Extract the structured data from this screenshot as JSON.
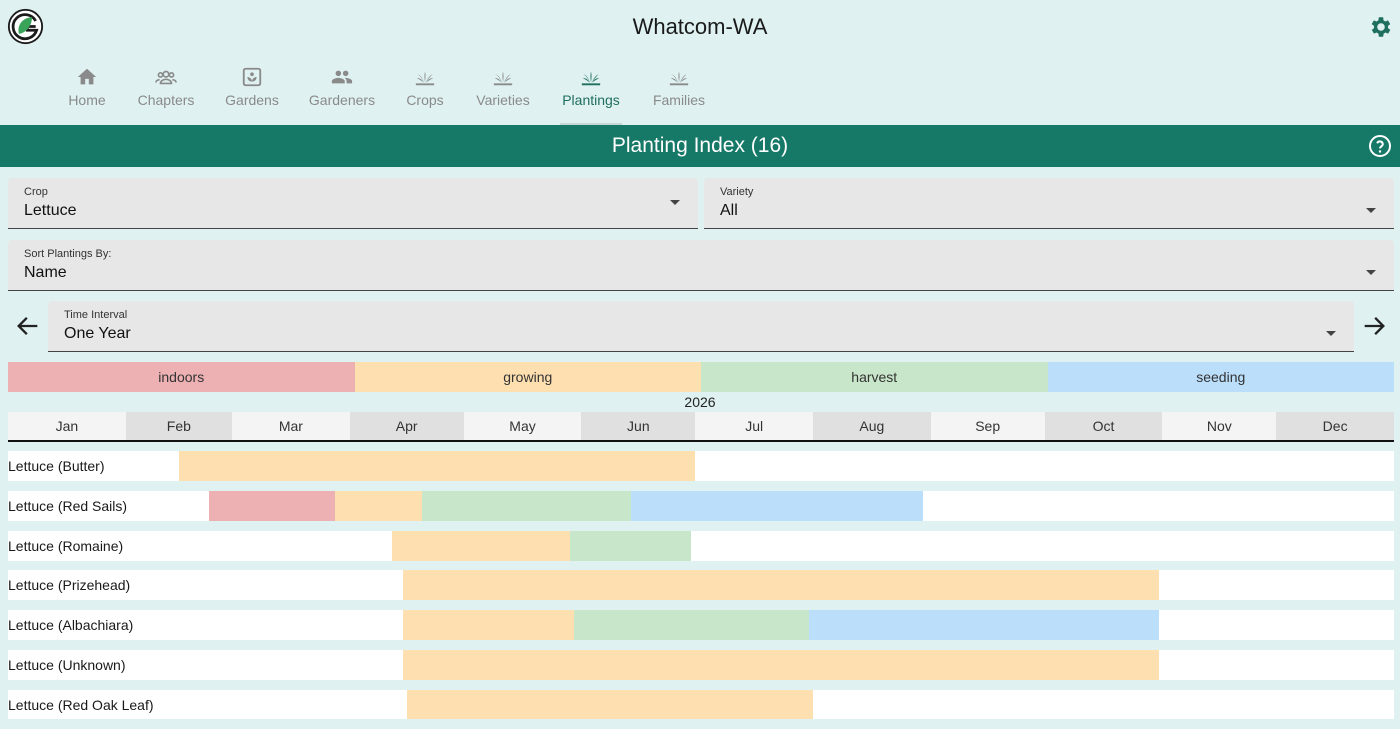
{
  "app": {
    "title": "Whatcom-WA",
    "logo_icon": "g-leaf-logo",
    "settings_icon": "gear-icon"
  },
  "nav": [
    {
      "label": "Home",
      "icon": "home-icon",
      "active": false
    },
    {
      "label": "Chapters",
      "icon": "groups-icon",
      "active": false
    },
    {
      "label": "Gardens",
      "icon": "garden-icon",
      "active": false
    },
    {
      "label": "Gardeners",
      "icon": "people-icon",
      "active": false
    },
    {
      "label": "Crops",
      "icon": "sprout-icon",
      "active": false
    },
    {
      "label": "Varieties",
      "icon": "sprout-icon",
      "active": false
    },
    {
      "label": "Plantings",
      "icon": "sprout-icon",
      "active": true
    },
    {
      "label": "Families",
      "icon": "sprout-icon",
      "active": false
    }
  ],
  "page": {
    "title": "Planting Index (16)",
    "help_icon": "help-circle-icon"
  },
  "filters": {
    "crop": {
      "label": "Crop",
      "value": "Lettuce"
    },
    "variety": {
      "label": "Variety",
      "value": "All"
    },
    "sort": {
      "label": "Sort Plantings By:",
      "value": "Name"
    },
    "interval": {
      "label": "Time Interval",
      "value": "One Year"
    }
  },
  "legend": [
    {
      "label": "indoors",
      "color": "#edb1b4"
    },
    {
      "label": "growing",
      "color": "#fee0b0"
    },
    {
      "label": "harvest",
      "color": "#c8e6c9"
    },
    {
      "label": "seeding",
      "color": "#bbdefb"
    }
  ],
  "timeline": {
    "year": "2026",
    "months": [
      "Jan",
      "Feb",
      "Mar",
      "Apr",
      "May",
      "Jun",
      "Jul",
      "Aug",
      "Sep",
      "Oct",
      "Nov",
      "Dec"
    ]
  },
  "plantings": [
    {
      "name": "Lettuce (Butter)",
      "segments": [
        {
          "stage": "growing",
          "start": "2026-02-15",
          "end": "2026-07-01"
        }
      ]
    },
    {
      "name": "Lettuce (Red Sails)",
      "segments": [
        {
          "stage": "indoors",
          "start": "2026-02-23",
          "end": "2026-03-28"
        },
        {
          "stage": "growing",
          "start": "2026-03-28",
          "end": "2026-04-20"
        },
        {
          "stage": "harvest",
          "start": "2026-04-20",
          "end": "2026-06-14"
        },
        {
          "stage": "seeding",
          "start": "2026-06-14",
          "end": "2026-08-30"
        }
      ]
    },
    {
      "name": "Lettuce (Romaine)",
      "segments": [
        {
          "stage": "growing",
          "start": "2026-04-12",
          "end": "2026-05-29"
        },
        {
          "stage": "harvest",
          "start": "2026-05-29",
          "end": "2026-06-30"
        }
      ]
    },
    {
      "name": "Lettuce (Prizehead)",
      "segments": [
        {
          "stage": "growing",
          "start": "2026-04-15",
          "end": "2026-10-31"
        }
      ]
    },
    {
      "name": "Lettuce (Albachiara)",
      "segments": [
        {
          "stage": "growing",
          "start": "2026-04-15",
          "end": "2026-05-30"
        },
        {
          "stage": "harvest",
          "start": "2026-05-30",
          "end": "2026-07-31"
        },
        {
          "stage": "seeding",
          "start": "2026-07-31",
          "end": "2026-10-31"
        }
      ]
    },
    {
      "name": "Lettuce (Unknown)",
      "segments": [
        {
          "stage": "growing",
          "start": "2026-04-15",
          "end": "2026-10-31"
        }
      ]
    },
    {
      "name": "Lettuce (Red Oak Leaf)",
      "segments": [
        {
          "stage": "growing",
          "start": "2026-04-16",
          "end": "2026-08-01"
        }
      ]
    }
  ]
}
